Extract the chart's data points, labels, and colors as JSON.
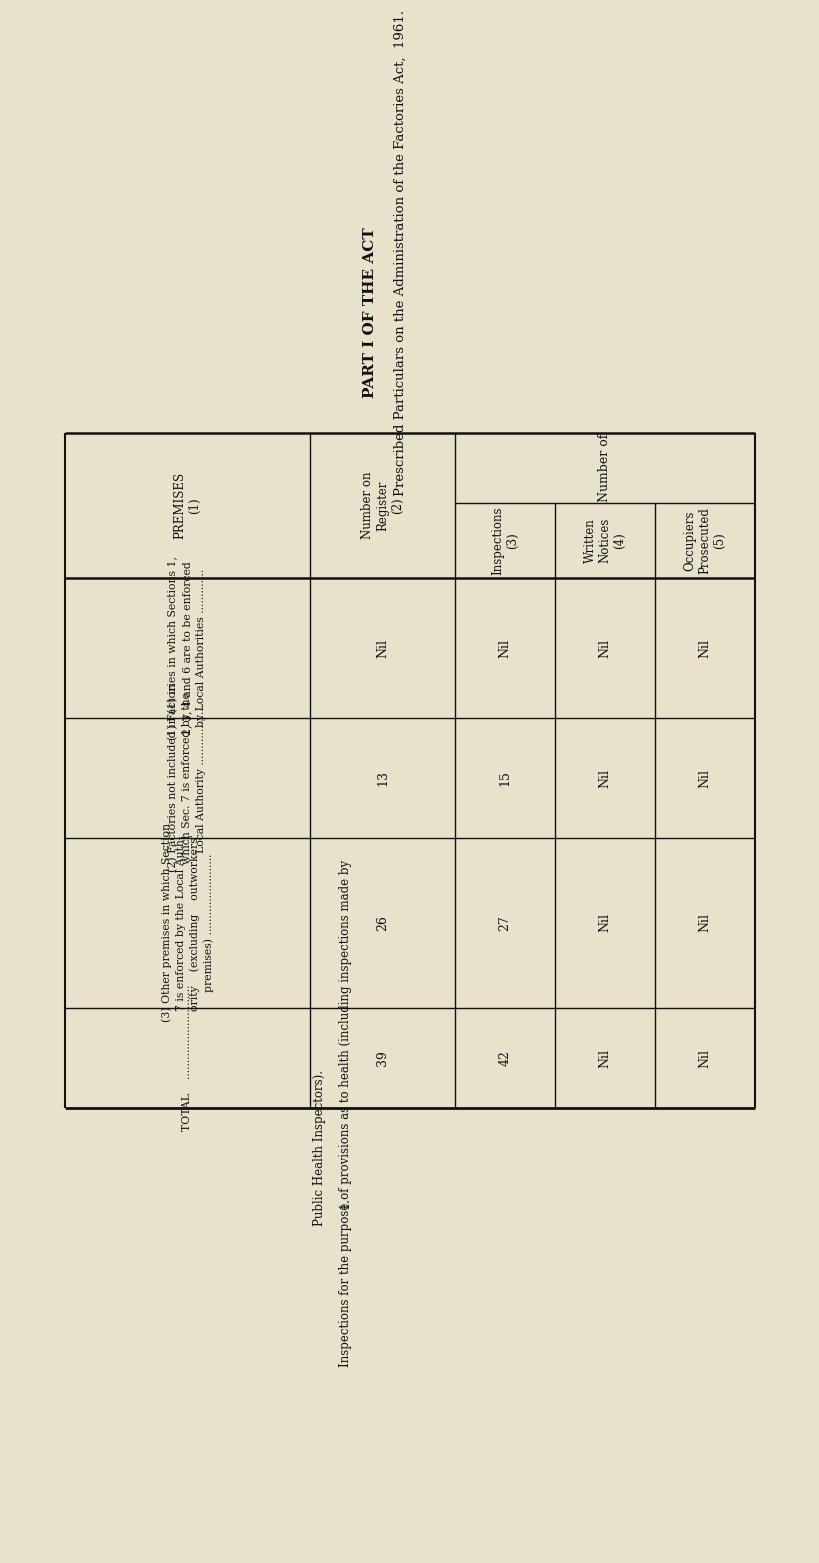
{
  "bg_color": "#e8e2cc",
  "page_title": "Prescribed Particulars on the Administration of the Factories Act,  1961.",
  "title_main": "PART I OF THE ACT",
  "section_label": "1.",
  "section_text1": "Inspections for the purpose of provisions as to health (including inspections made by",
  "section_text2": "Public Health Inspectors).",
  "col_premises_header": "PREMISES\n(1)",
  "col_register_header": "Number on\nRegister\n(2)",
  "col_inspections_header": "Inspections\n(3)",
  "col_written_header": "Written\nNotices\n(4)",
  "col_prosecuted_header": "Occupiers\nProsecuted\n(5)",
  "col_numberof_header": "Number of",
  "rows": [
    {
      "label_lines": [
        "(1) Factories in which Sections 1,",
        "2, 3, 4 and 6 are to be enforced",
        "by Local Authorities ............."
      ],
      "register": "Nil",
      "inspections": "Nil",
      "written_notices": "Nil",
      "prosecuted": "Nil"
    },
    {
      "label_lines": [
        "(2) Factories not included in (1) in",
        "which Sec. 7 is enforced by the",
        "Local Authority .................."
      ],
      "register": "13",
      "inspections": "15",
      "written_notices": "Nil",
      "prosecuted": "Nil"
    },
    {
      "label_lines": [
        "(3) Other premises in which Section",
        "7 is enforced by the Local Auth-",
        "ority    (excluding    outworkers'",
        "premises) ........................"
      ],
      "register": "26",
      "inspections": "27",
      "written_notices": "Nil",
      "prosecuted": "Nil"
    },
    {
      "label_lines": [
        "TOTAL    ............................"
      ],
      "register": "39",
      "inspections": "42",
      "written_notices": "Nil",
      "prosecuted": "Nil"
    }
  ]
}
